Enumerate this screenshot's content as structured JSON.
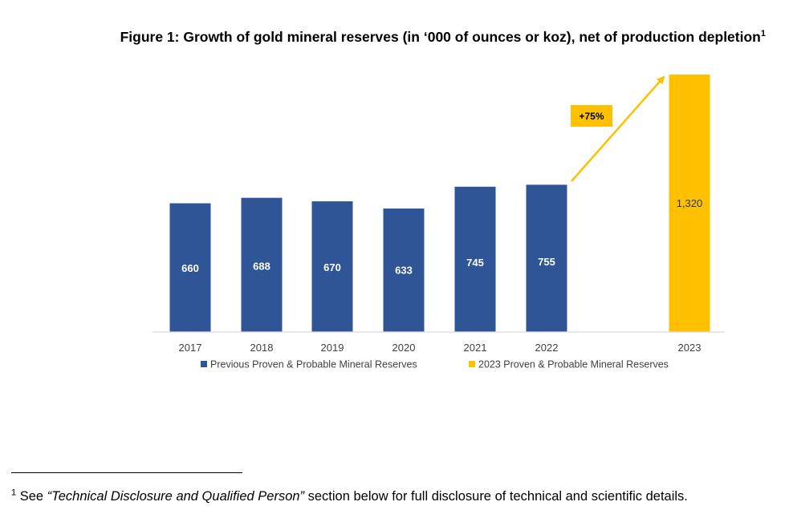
{
  "figure": {
    "title": "Figure 1: Growth of gold mineral reserves (in ‘000 of ounces or koz), net of production depletion",
    "title_superscript": "1"
  },
  "chart_data": {
    "type": "bar",
    "categories": [
      "2017",
      "2018",
      "2019",
      "2020",
      "2021",
      "2022",
      "2023"
    ],
    "series": [
      {
        "name": "Previous Proven & Probable Mineral Reserves",
        "color": "#2F5597",
        "label_color": "#FFFFFF",
        "values": [
          660,
          688,
          670,
          633,
          745,
          755,
          null
        ],
        "labels": [
          "660",
          "688",
          "670",
          "633",
          "745",
          "755",
          ""
        ]
      },
      {
        "name": "2023 Proven & Probable Mineral Reserves",
        "color": "#FFC000",
        "label_color": "#1F3864",
        "values": [
          null,
          null,
          null,
          null,
          null,
          null,
          1320
        ],
        "labels": [
          "",
          "",
          "",
          "",
          "",
          "",
          "1,320"
        ]
      }
    ],
    "annotation": {
      "text": "+75%",
      "from_category": "2022",
      "to_category": "2023",
      "color": "#FFC000"
    },
    "ylim": [
      0,
      1320
    ],
    "grid": false,
    "legend_position": "bottom"
  },
  "footnote": {
    "marker": "1",
    "prefix": " See ",
    "emphasis": "“Technical Disclosure and Qualified Person”",
    "suffix": " section below for full disclosure of technical and scientific details."
  }
}
